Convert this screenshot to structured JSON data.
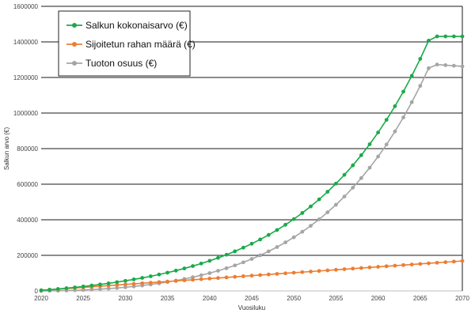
{
  "chart_data": {
    "type": "line",
    "xlabel": "Vuosiluku",
    "ylabel": "Salkun arvo (€)",
    "xlim": [
      2020,
      2070
    ],
    "ylim": [
      0,
      1600000
    ],
    "x_ticks": [
      2020,
      2025,
      2030,
      2035,
      2040,
      2045,
      2050,
      2055,
      2060,
      2065,
      2070
    ],
    "y_ticks": [
      0,
      200000,
      400000,
      600000,
      800000,
      1000000,
      1200000,
      1400000,
      1600000
    ],
    "grid": "horizontal",
    "legend_position": "top-left",
    "x": [
      2020,
      2021,
      2022,
      2023,
      2024,
      2025,
      2026,
      2027,
      2028,
      2029,
      2030,
      2031,
      2032,
      2033,
      2034,
      2035,
      2036,
      2037,
      2038,
      2039,
      2040,
      2041,
      2042,
      2043,
      2044,
      2045,
      2046,
      2047,
      2048,
      2049,
      2050,
      2051,
      2052,
      2053,
      2054,
      2055,
      2056,
      2057,
      2058,
      2059,
      2060,
      2061,
      2062,
      2063,
      2064,
      2065,
      2066,
      2067,
      2068,
      2069,
      2070
    ],
    "series": [
      {
        "name": "Salkun kokonaisarvo (€)",
        "color": "#1aaa4a",
        "values": [
          3300,
          7000,
          11000,
          15300,
          19900,
          25000,
          30400,
          36300,
          42600,
          49400,
          56800,
          64700,
          73200,
          82300,
          92200,
          102800,
          114200,
          126500,
          139700,
          154000,
          169300,
          185800,
          203500,
          222600,
          243200,
          265300,
          289100,
          314700,
          342300,
          371900,
          403800,
          438100,
          475000,
          514700,
          557400,
          603300,
          652700,
          705800,
          763000,
          824500,
          890700,
          961800,
          1038400,
          1120700,
          1209300,
          1304600,
          1407100,
          1431000,
          1431000,
          1431000,
          1431000
        ]
      },
      {
        "name": "Sijoitetun rahan määrä (€)",
        "color": "#ed7d31",
        "values": [
          3300,
          6600,
          9900,
          13200,
          16500,
          19800,
          23100,
          26400,
          29700,
          33000,
          36300,
          39600,
          42900,
          46200,
          49500,
          52800,
          56100,
          59400,
          62700,
          66000,
          69300,
          72600,
          75900,
          79200,
          82500,
          85800,
          89100,
          92400,
          95700,
          99000,
          102300,
          105600,
          108900,
          112200,
          115500,
          118800,
          122100,
          125400,
          128700,
          132000,
          135300,
          138600,
          141900,
          145200,
          148500,
          151800,
          155100,
          158400,
          161700,
          165000,
          168300
        ]
      },
      {
        "name": "Tuoton osuus (€)",
        "color": "#a5a5a5",
        "values": [
          0,
          400,
          1100,
          2100,
          3400,
          5200,
          7300,
          9900,
          12900,
          16400,
          20500,
          25100,
          30300,
          36100,
          42700,
          50000,
          58100,
          67100,
          77000,
          88000,
          100000,
          113200,
          127600,
          143400,
          160700,
          179500,
          200000,
          222300,
          246600,
          272900,
          301500,
          332500,
          366100,
          402500,
          441900,
          484500,
          530600,
          580400,
          634300,
          692500,
          755400,
          823200,
          896500,
          975500,
          1060800,
          1152800,
          1252000,
          1272600,
          1269300,
          1266000,
          1262700
        ]
      }
    ]
  }
}
